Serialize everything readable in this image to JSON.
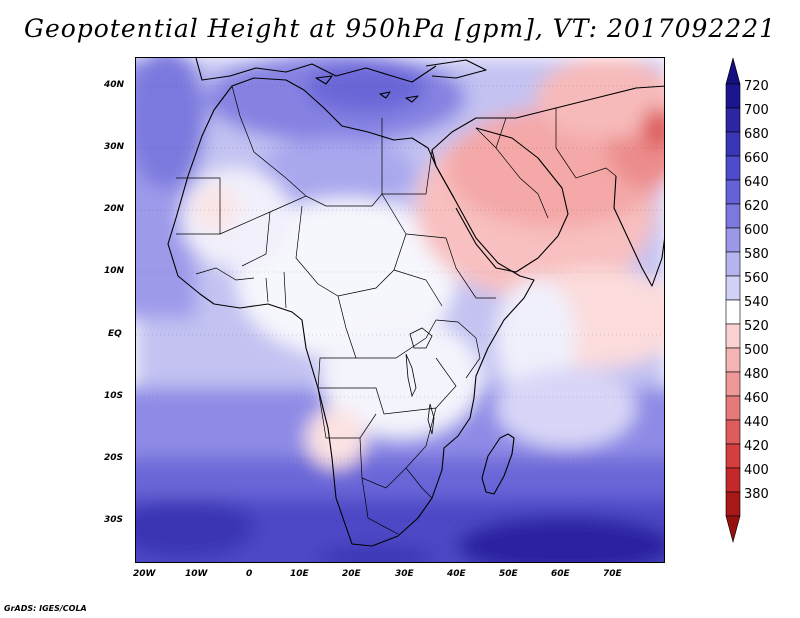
{
  "title": "Geopotential Height at 950hPa [gpm], VT: 2017092221",
  "credit": "GrADS: IGES/COLA",
  "map": {
    "lat_labels": [
      "40N",
      "30N",
      "20N",
      "10N",
      "EQ",
      "10S",
      "20S",
      "30S"
    ],
    "lon_labels": [
      "20W",
      "10W",
      "0",
      "10E",
      "20E",
      "30E",
      "40E",
      "50E",
      "60E",
      "70E"
    ]
  },
  "colorbar": {
    "levels": [
      "720",
      "700",
      "680",
      "660",
      "640",
      "620",
      "600",
      "580",
      "560",
      "540",
      "520",
      "500",
      "480",
      "460",
      "440",
      "420",
      "400",
      "380"
    ],
    "colors": [
      "#1a1690",
      "#2c25a4",
      "#3a36b8",
      "#4e4bcc",
      "#6561d6",
      "#7c79de",
      "#9b98e8",
      "#b6b4ef",
      "#d2d1f6",
      "#ffffff",
      "#fbd2d2",
      "#f4b4b4",
      "#ee9898",
      "#e67a7a",
      "#de5c5c",
      "#d43e3e",
      "#c42828",
      "#a81818"
    ],
    "top_color": "#150f80",
    "bottom_color": "#961010"
  }
}
